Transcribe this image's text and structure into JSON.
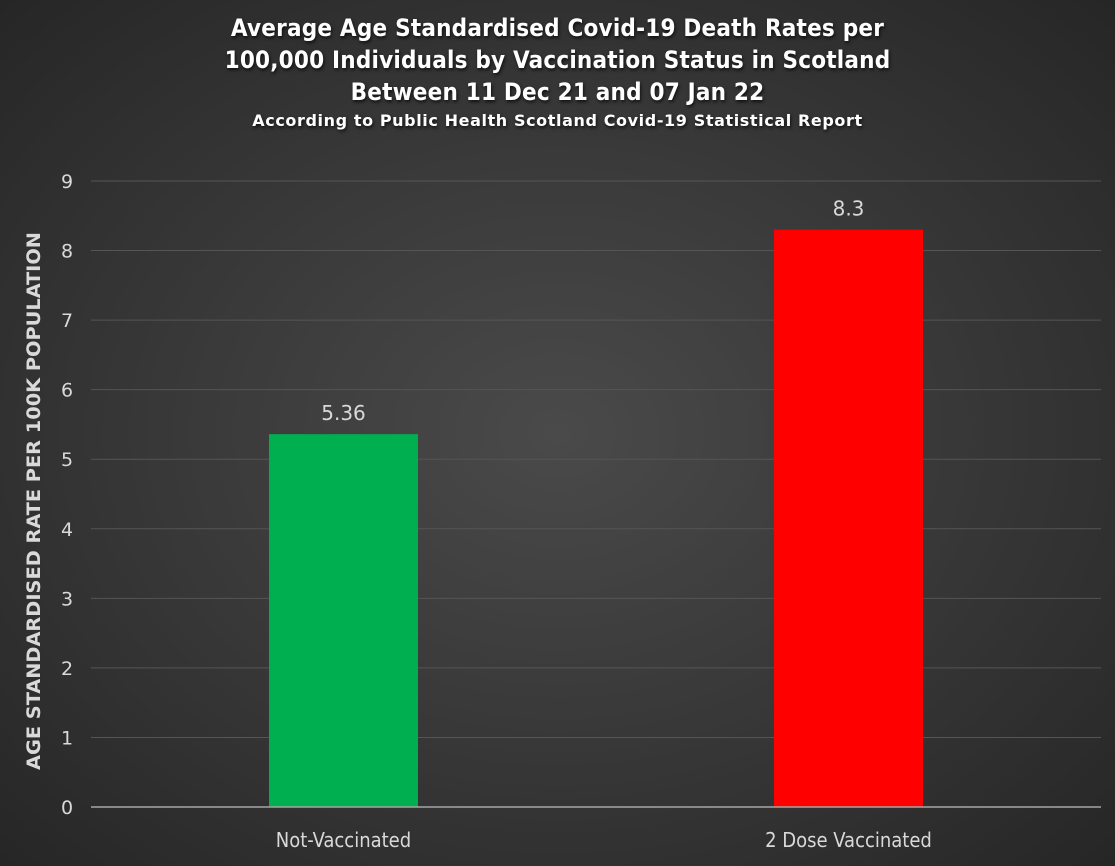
{
  "chart_data": {
    "type": "bar",
    "title_lines": [
      "Average Age Standardised Covid-19 Death Rates per",
      "100,000 Individuals by Vaccination Status in Scotland",
      "Between 11 Dec 21 and 07 Jan 22"
    ],
    "subtitle": "According to Public Health Scotland Covid-19 Statistical Report",
    "xlabel": "",
    "ylabel": "AGE STANDARDISED RATE PER 100K POPULATION",
    "ylim": [
      0,
      9
    ],
    "yticks": [
      "0",
      "1",
      "2",
      "3",
      "4",
      "5",
      "6",
      "7",
      "8",
      "9"
    ],
    "grid": true,
    "categories": [
      "Not-Vaccinated",
      "2 Dose Vaccinated"
    ],
    "values": [
      5.36,
      8.3
    ],
    "data_labels": [
      "5.36",
      "8.3"
    ],
    "colors": [
      "#00b050",
      "#ff0000"
    ]
  }
}
